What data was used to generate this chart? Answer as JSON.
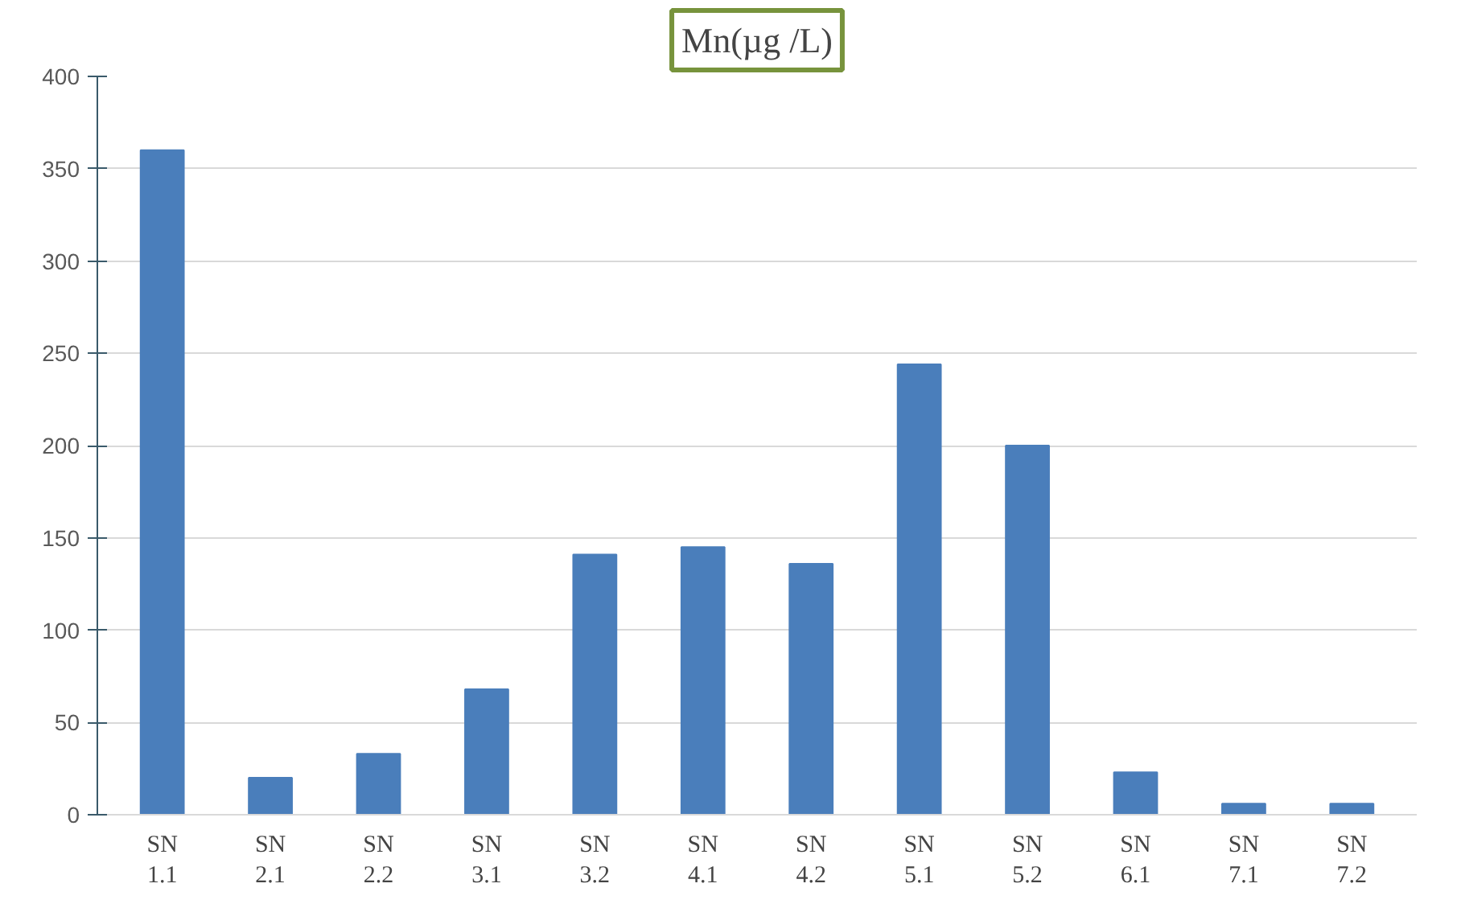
{
  "chart_data": {
    "type": "bar",
    "title": "Mn(µg /L)",
    "categories": [
      "SN 1.1",
      "SN 2.1",
      "SN 2.2",
      "SN 3.1",
      "SN 3.2",
      "SN 4.1",
      "SN 4.2",
      "SN 5.1",
      "SN 5.2",
      "SN 6.1",
      "SN 7.1",
      "SN 7.2"
    ],
    "values": [
      360,
      20,
      33,
      68,
      141,
      145,
      136,
      244,
      200,
      23,
      6,
      6
    ],
    "color": "#4a7ebb",
    "ylim": [
      0,
      400
    ],
    "yticks": [
      0,
      50,
      100,
      150,
      200,
      250,
      300,
      350,
      400
    ],
    "grid": "y"
  }
}
